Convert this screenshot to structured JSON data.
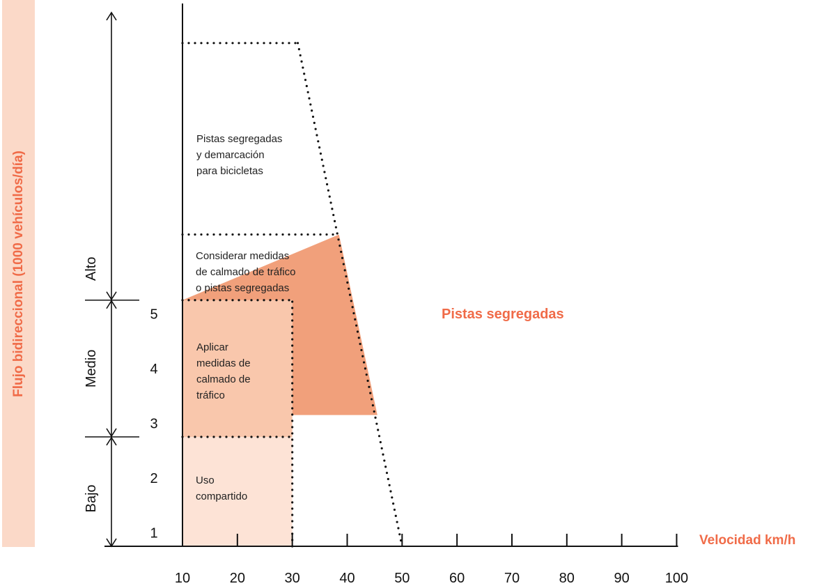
{
  "chart_data": {
    "type": "area",
    "ylabel": "Flujo bidireccional (1000 vehículos/día)",
    "xlabel": "Velocidad km/h",
    "x_ticks": [
      "10",
      "20",
      "30",
      "40",
      "50",
      "60",
      "70",
      "80",
      "90",
      "100"
    ],
    "y_ticks": [
      "1",
      "2",
      "3",
      "4",
      "5"
    ],
    "levels": [
      "Bajo",
      "Medio",
      "Alto"
    ],
    "xlim": [
      10,
      100
    ],
    "ylim": [
      0,
      9
    ],
    "zones": [
      {
        "label": "Uso\ncompartido",
        "color": "#fde3d6",
        "polygon": [
          [
            10,
            0
          ],
          [
            30,
            0
          ],
          [
            30,
            2
          ],
          [
            10,
            2
          ]
        ]
      },
      {
        "label": "Aplicar\nmedidas de\ncalmado de\ntráfico",
        "color": "#f9c7ac",
        "polygon": [
          [
            10,
            2
          ],
          [
            30,
            2
          ],
          [
            30,
            4.5
          ],
          [
            10,
            4.5
          ]
        ]
      },
      {
        "label": "Considerar medidas\nde calmado de tráfico\no pistas segregadas",
        "color": "#f1a07b",
        "polygon": [
          [
            10,
            4.5
          ],
          [
            38.5,
            5.7
          ],
          [
            45.5,
            2.4
          ],
          [
            30,
            2.4
          ],
          [
            30,
            4.5
          ]
        ]
      },
      {
        "label": "Pistas segregadas\ny demarcación\npara bicicletas",
        "color": "#ffffff",
        "polygon": [
          [
            10,
            5.7
          ],
          [
            38.5,
            5.7
          ],
          [
            31,
            9.2
          ],
          [
            10,
            9.2
          ]
        ]
      }
    ],
    "outside_label": "Pistas segregadas",
    "colors": {
      "axis": "#111111",
      "accent": "#f06b48",
      "ylabel_band": "#fbd9c8"
    }
  }
}
